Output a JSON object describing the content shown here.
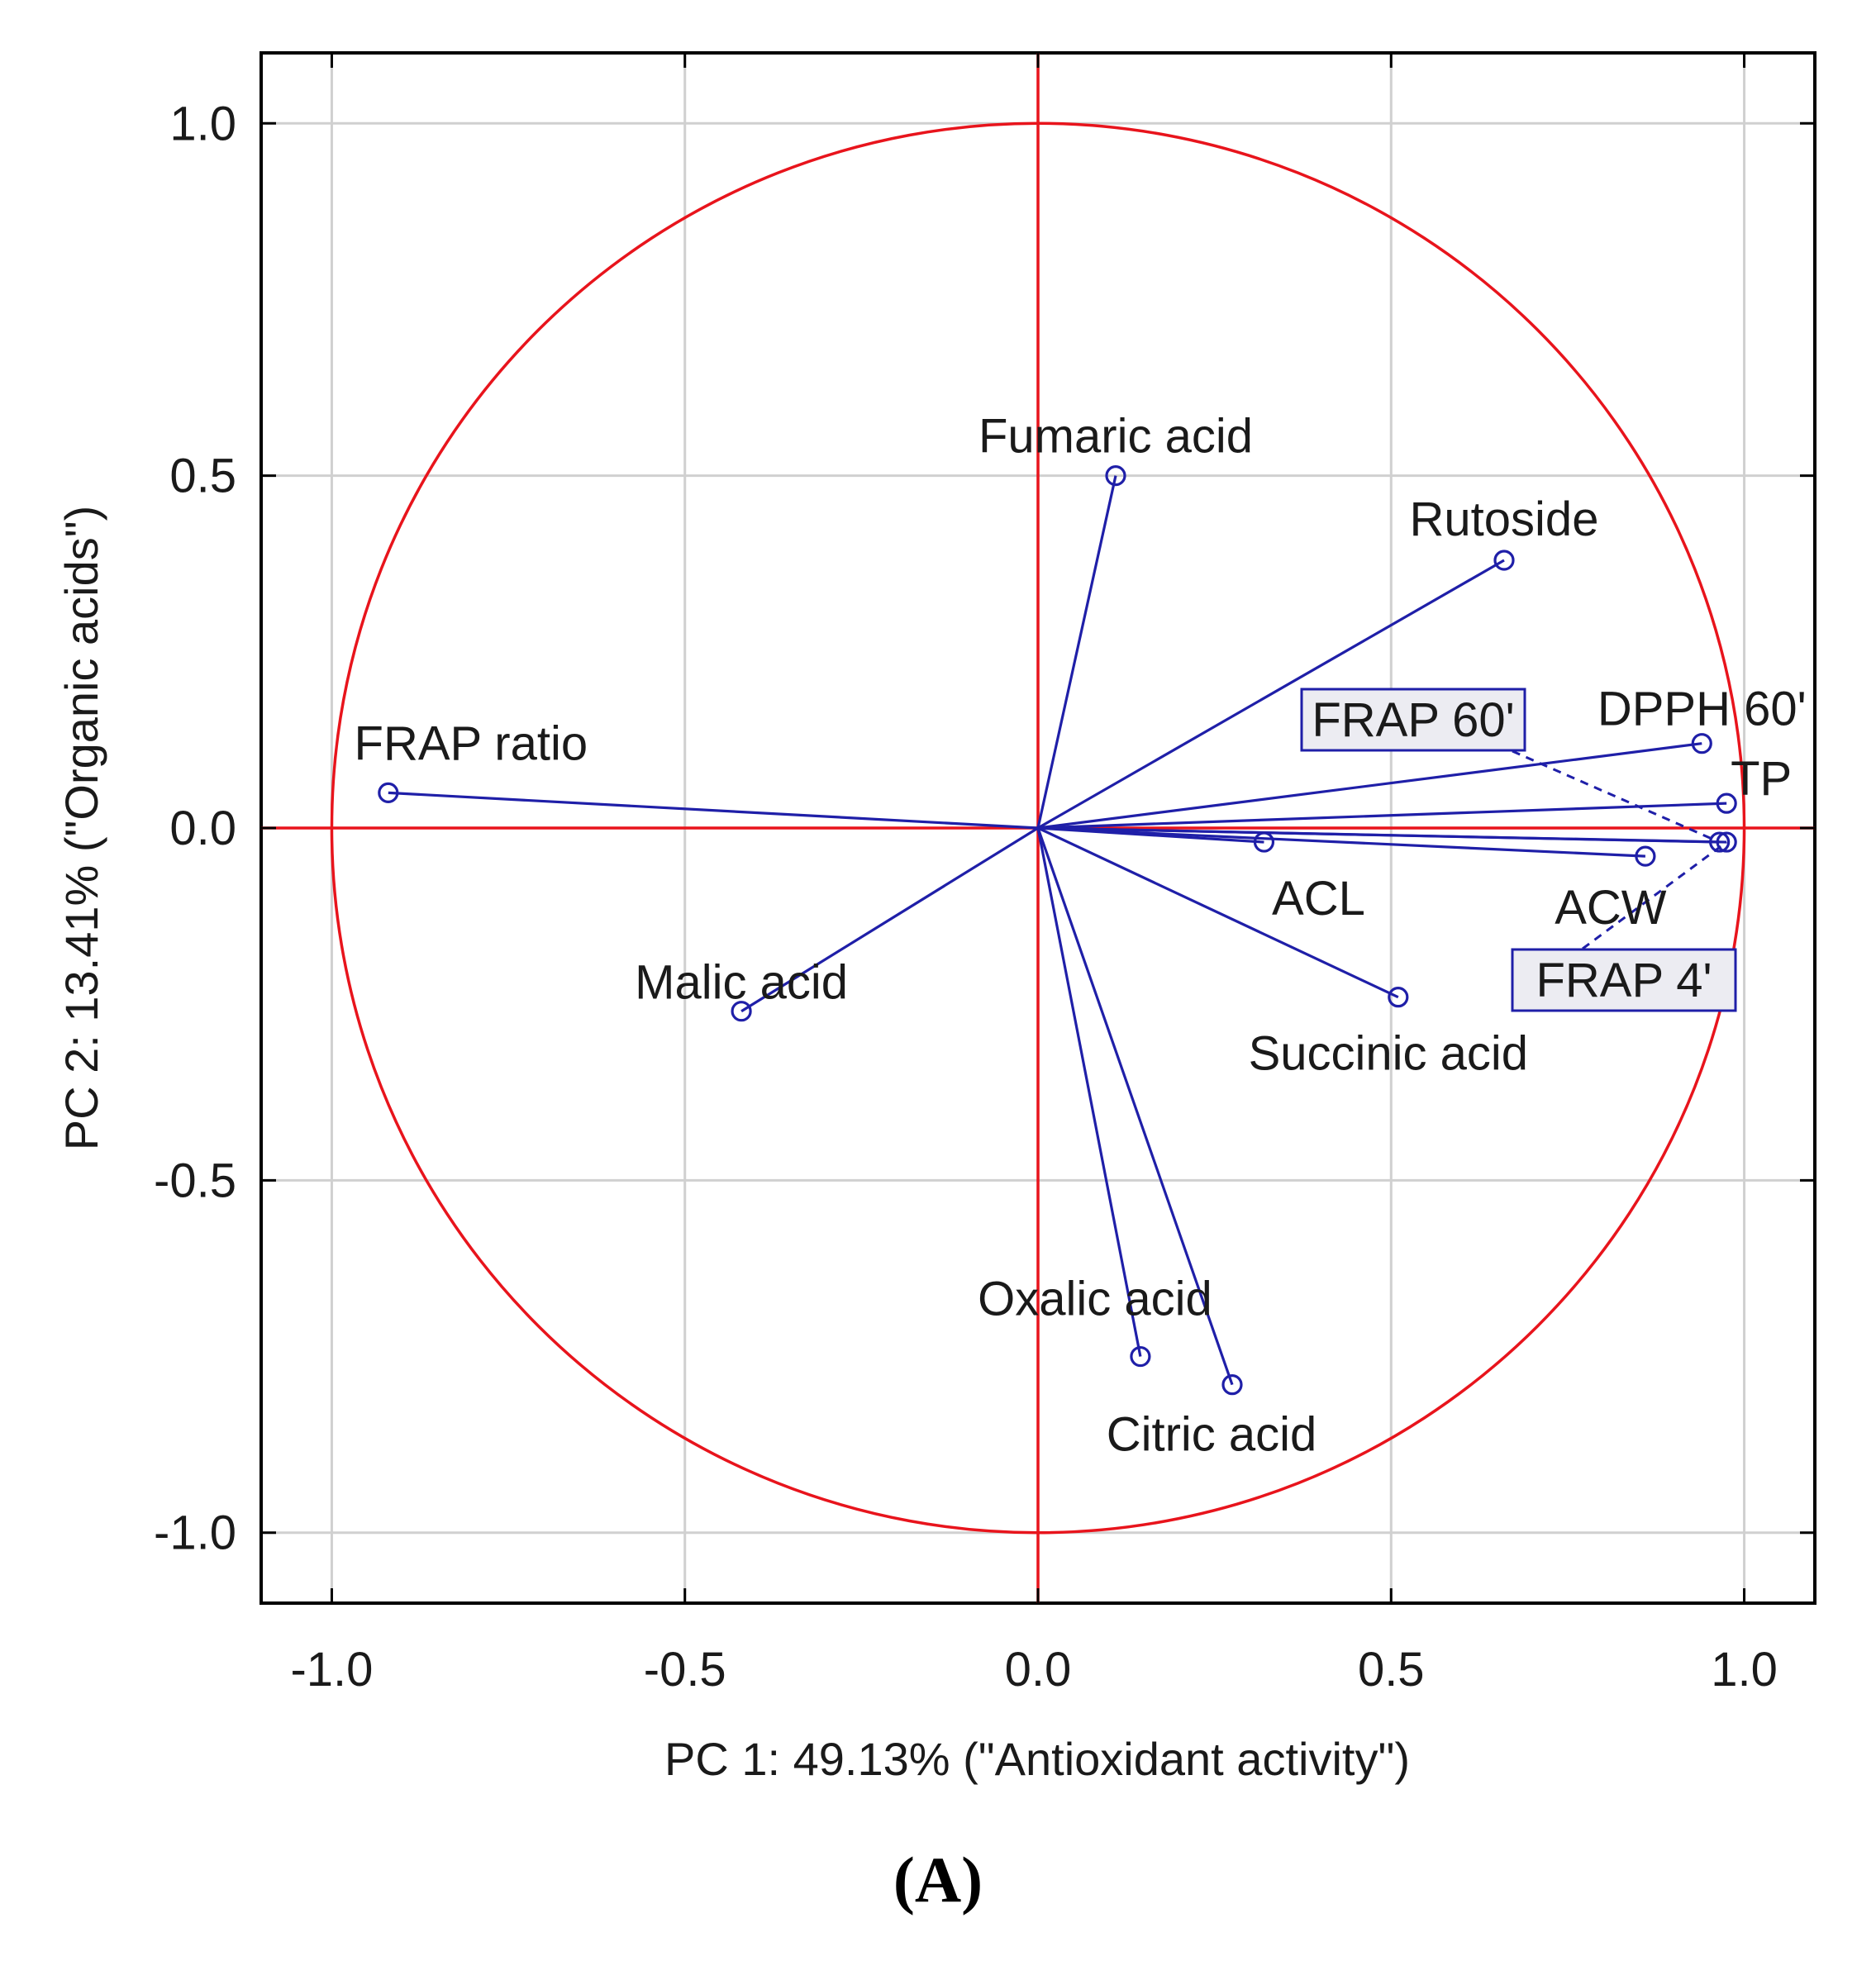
{
  "caption": "(A)",
  "chart_data": {
    "type": "scatter",
    "title": "",
    "xlabel": "PC 1: 49.13% (\"Antioxidant activity\")",
    "ylabel": "PC 2: 13.41% (\"Organic acids\")",
    "xlim": [
      -1.1,
      1.1
    ],
    "ylim": [
      -1.1,
      1.1
    ],
    "x_ticks": [
      "-1.0",
      "-0.5",
      "0.0",
      "0.5",
      "1.0"
    ],
    "y_ticks": [
      "1.0",
      "0.5",
      "0.0",
      "-0.5",
      "-1.0"
    ],
    "x_tick_values": [
      -1.0,
      -0.5,
      0.0,
      0.5,
      1.0
    ],
    "y_tick_values": [
      1.0,
      0.5,
      0.0,
      -0.5,
      -1.0
    ],
    "grid": true,
    "unit_circle": true,
    "colors": {
      "vectors": "#1f1fa8",
      "circle": "#e8141c",
      "grid": "#d0d0d0",
      "label_box_fill": "#ececf2"
    },
    "points": [
      {
        "name": "Fumaric acid",
        "x": 0.11,
        "y": 0.5
      },
      {
        "name": "Rutoside",
        "x": 0.66,
        "y": 0.38
      },
      {
        "name": "DPPH 60'",
        "x": 0.94,
        "y": 0.12
      },
      {
        "name": "TP",
        "x": 0.975,
        "y": 0.035
      },
      {
        "name": "FRAP 60'",
        "x": 0.965,
        "y": -0.02,
        "boxed": true
      },
      {
        "name": "FRAP 4'",
        "x": 0.975,
        "y": -0.02,
        "boxed": true
      },
      {
        "name": "ACW",
        "x": 0.86,
        "y": -0.04
      },
      {
        "name": "ACL",
        "x": 0.32,
        "y": -0.02
      },
      {
        "name": "Succinic acid",
        "x": 0.51,
        "y": -0.24
      },
      {
        "name": "FRAP ratio",
        "x": -0.92,
        "y": 0.05
      },
      {
        "name": "Malic acid",
        "x": -0.42,
        "y": -0.26
      },
      {
        "name": "Oxalic acid",
        "x": 0.145,
        "y": -0.75
      },
      {
        "name": "Citric acid",
        "x": 0.275,
        "y": -0.79
      }
    ]
  }
}
